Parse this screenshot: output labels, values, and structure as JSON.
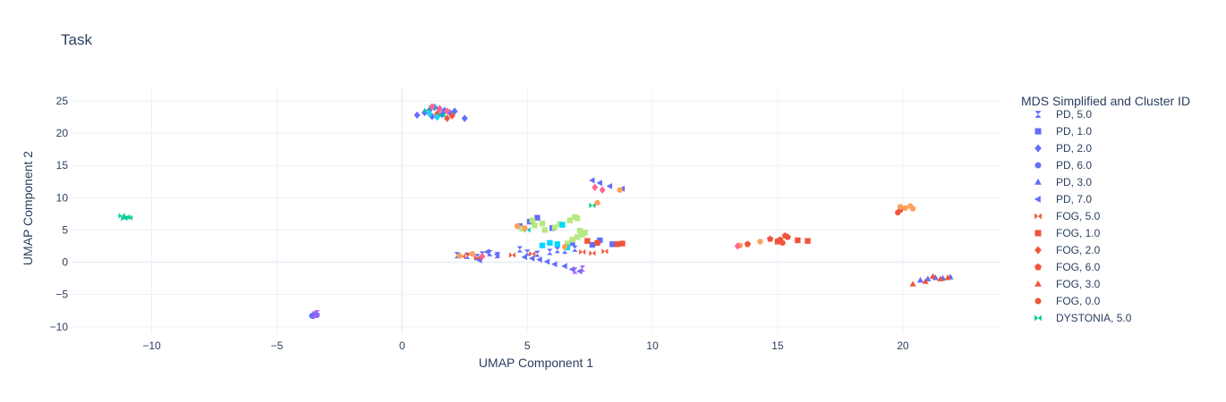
{
  "chart_data": {
    "type": "scatter",
    "title": "Task",
    "xlabel": "UMAP Component 1",
    "ylabel": "UMAP Component 2",
    "xlim": [
      -13.2,
      23.9
    ],
    "ylim": [
      -11.0,
      26.8
    ],
    "xticks": [
      -10,
      -5,
      0,
      5,
      10,
      15,
      20
    ],
    "yticks": [
      -10,
      -5,
      0,
      5,
      10,
      15,
      20,
      25
    ],
    "xtick_labels": [
      "−10",
      "−5",
      "0",
      "5",
      "10",
      "15",
      "20"
    ],
    "ytick_labels": [
      "−10",
      "−5",
      "0",
      "5",
      "10",
      "15",
      "20",
      "25"
    ],
    "grid": true,
    "legend_title": "MDS Simplified and Cluster ID",
    "legend_position": "right",
    "series": [
      {
        "name": "PD, 5.0",
        "color": "#636efa",
        "symbol": "bowtie-h",
        "x": [
          2.2,
          2.6,
          3.0,
          3.2,
          3.5,
          3.8,
          4.7,
          5.0,
          5.4,
          5.9,
          6.2,
          6.5,
          6.9
        ],
        "y": [
          1.1,
          1.0,
          0.8,
          1.2,
          1.4,
          1.1,
          2.0,
          1.5,
          1.3,
          1.6,
          1.9,
          1.8,
          2.1
        ]
      },
      {
        "name": "PD, 1.0",
        "color": "#636efa",
        "symbol": "square",
        "x": [
          4.7,
          5.1,
          5.4,
          6.0,
          6.8,
          7.6,
          7.9,
          8.4
        ],
        "y": [
          5.6,
          6.3,
          6.9,
          5.3,
          3.0,
          2.7,
          3.4,
          2.8
        ]
      },
      {
        "name": "PD, 2.0",
        "color": "#636efa",
        "symbol": "diamond",
        "x": [
          0.6,
          0.9,
          1.1,
          1.3,
          1.5,
          1.7,
          1.9,
          2.1,
          2.5,
          1.2,
          1.6
        ],
        "y": [
          22.8,
          23.2,
          23.6,
          24.0,
          23.8,
          23.5,
          23.2,
          23.4,
          22.3,
          22.6,
          22.9
        ]
      },
      {
        "name": "PD, 6.0",
        "color": "#636efa",
        "symbol": "circle",
        "x": [
          -3.6,
          -3.5,
          -3.45,
          -3.4,
          -3.55
        ],
        "y": [
          -8.3,
          -8.1,
          -8.0,
          -8.2,
          -8.35
        ]
      },
      {
        "name": "PD, 3.0",
        "color": "#636efa",
        "symbol": "triangle-up",
        "x": [
          20.7,
          21.0,
          21.3,
          21.6,
          21.9
        ],
        "y": [
          -2.8,
          -2.6,
          -2.4,
          -2.5,
          -2.3
        ]
      },
      {
        "name": "PD, 7.0",
        "color": "#636efa",
        "symbol": "triangle-left",
        "x": [
          4.9,
          5.2,
          5.5,
          5.8,
          6.1,
          6.5,
          6.8,
          7.1,
          7.6,
          7.9,
          8.3,
          8.8,
          3.1,
          3.4,
          3.8
        ],
        "y": [
          0.8,
          0.6,
          0.4,
          0.1,
          -0.3,
          -0.6,
          -1.1,
          -1.4,
          12.7,
          12.3,
          11.8,
          11.4,
          0.3,
          1.6,
          1.2
        ]
      },
      {
        "name": "FOG, 5.0",
        "color": "#ef553b",
        "symbol": "bowtie",
        "x": [
          2.4,
          2.7,
          3.0,
          4.4,
          5.2,
          7.2,
          7.6,
          8.1
        ],
        "y": [
          0.9,
          1.2,
          0.7,
          1.1,
          1.3,
          1.6,
          1.4,
          1.7
        ]
      },
      {
        "name": "FOG, 1.0",
        "color": "#ef553b",
        "symbol": "square",
        "x": [
          7.4,
          7.8,
          8.6,
          8.8,
          15.0,
          15.8,
          16.2
        ],
        "y": [
          3.3,
          3.0,
          2.8,
          2.9,
          3.2,
          3.4,
          3.3
        ]
      },
      {
        "name": "FOG, 2.0",
        "color": "#ef553b",
        "symbol": "diamond",
        "x": [
          1.4,
          1.8,
          2.0
        ],
        "y": [
          23.0,
          22.3,
          22.7
        ]
      },
      {
        "name": "FOG, 6.0",
        "color": "#ef553b",
        "symbol": "pentagon",
        "x": [
          13.8,
          14.7,
          15.1,
          15.4,
          15.3
        ],
        "y": [
          2.8,
          3.6,
          3.5,
          3.9,
          4.1
        ]
      },
      {
        "name": "FOG, 3.0",
        "color": "#ef553b",
        "symbol": "triangle-up",
        "x": [
          20.4,
          20.9,
          21.2,
          21.5,
          21.8
        ],
        "y": [
          -3.4,
          -3.0,
          -2.2,
          -2.6,
          -2.4
        ]
      },
      {
        "name": "FOG, 0.0",
        "color": "#ef553b",
        "symbol": "circle",
        "x": [
          15.0,
          15.2,
          19.8,
          19.9
        ],
        "y": [
          3.3,
          3.0,
          7.7,
          8.1
        ]
      },
      {
        "name": "DYSTONIA, 5.0",
        "color": "#00cc96",
        "symbol": "bowtie",
        "x": [
          -11.2,
          -11.0,
          -10.9,
          -11.1,
          1.0,
          1.2,
          1.6,
          5.0,
          7.6
        ],
        "y": [
          7.2,
          7.0,
          6.9,
          6.8,
          23.5,
          24.0,
          22.8,
          5.0,
          8.8
        ]
      },
      {
        "name": "",
        "color": "#b6e880",
        "symbol": "square",
        "x": [
          4.8,
          5.3,
          5.6,
          6.1,
          6.3,
          6.7,
          6.9,
          7.0,
          7.1,
          7.2,
          7.3,
          7.0,
          6.8,
          6.6,
          5.7,
          5.2
        ],
        "y": [
          5.2,
          5.7,
          6.0,
          5.4,
          5.9,
          6.5,
          7.0,
          6.8,
          4.9,
          4.3,
          4.6,
          3.9,
          3.5,
          2.9,
          5.0,
          6.5
        ]
      },
      {
        "name": "",
        "color": "#00d9ff",
        "symbol": "square",
        "x": [
          5.6,
          5.9,
          6.2,
          6.6,
          6.4
        ],
        "y": [
          2.6,
          3.0,
          2.8,
          2.3,
          5.8
        ]
      },
      {
        "name": "",
        "color": "#ffa15a",
        "symbol": "circle",
        "x": [
          13.5,
          14.3,
          19.9,
          20.1,
          20.3,
          20.4,
          4.6,
          4.9,
          6.5,
          7.8,
          8.7,
          2.3,
          2.8
        ],
        "y": [
          2.6,
          3.2,
          8.6,
          8.4,
          8.7,
          8.3,
          5.6,
          5.3,
          2.4,
          9.2,
          11.2,
          1.0,
          1.3
        ]
      },
      {
        "name": "",
        "color": "#ff6692",
        "symbol": "diamond",
        "x": [
          1.2,
          1.5,
          1.8,
          7.7,
          8.0,
          13.4,
          3.2
        ],
        "y": [
          24.1,
          23.7,
          23.4,
          11.6,
          11.2,
          2.5,
          0.9
        ]
      },
      {
        "name": "",
        "color": "#ab63fa",
        "symbol": "bowtie-h",
        "x": [
          -3.5,
          -3.4,
          6.9,
          7.2
        ],
        "y": [
          -8.1,
          -7.9,
          -1.3,
          -1.0
        ]
      },
      {
        "name": "",
        "color": "#19d3f3",
        "symbol": "diamond",
        "x": [
          1.1,
          1.4
        ],
        "y": [
          23.0,
          22.5
        ]
      }
    ]
  }
}
